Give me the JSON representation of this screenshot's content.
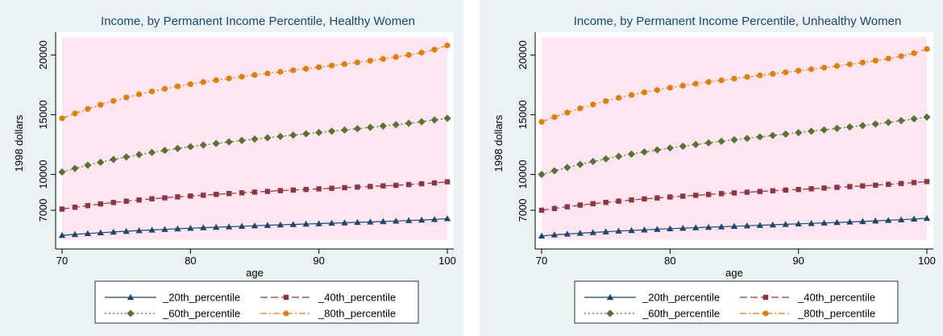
{
  "chart_data": [
    {
      "type": "line",
      "title": "Income, by Permanent Income Percentile, Healthy Women",
      "xlabel": "age",
      "ylabel": "1998 dollars",
      "xlim": [
        70,
        100
      ],
      "ylim": [
        4500,
        21500
      ],
      "x_ticks": [
        "70",
        "80",
        "90",
        "100"
      ],
      "y_ticks": [
        "7000",
        "10000",
        "15000",
        "20000"
      ],
      "x": [
        70,
        71,
        72,
        73,
        74,
        75,
        76,
        77,
        78,
        79,
        80,
        81,
        82,
        83,
        84,
        85,
        86,
        87,
        88,
        89,
        90,
        91,
        92,
        93,
        94,
        95,
        96,
        97,
        98,
        99,
        100
      ],
      "series": [
        {
          "name": "_20th_percentile",
          "color": "#1a476f",
          "marker": "triangle",
          "dash": "solid",
          "values": [
            4900,
            4980,
            5050,
            5120,
            5180,
            5240,
            5300,
            5350,
            5400,
            5450,
            5500,
            5540,
            5580,
            5620,
            5660,
            5700,
            5740,
            5780,
            5810,
            5850,
            5880,
            5920,
            5950,
            5990,
            6020,
            6060,
            6100,
            6140,
            6180,
            6230,
            6300
          ]
        },
        {
          "name": "_40th_percentile",
          "color": "#90353b",
          "marker": "square",
          "dash": "longdash",
          "values": [
            7100,
            7250,
            7390,
            7530,
            7650,
            7760,
            7860,
            7960,
            8040,
            8120,
            8190,
            8260,
            8330,
            8400,
            8460,
            8520,
            8580,
            8640,
            8690,
            8740,
            8790,
            8840,
            8890,
            8940,
            8990,
            9040,
            9090,
            9150,
            9220,
            9290,
            9380
          ]
        },
        {
          "name": "_60th_percentile",
          "color": "#55752f",
          "marker": "diamond",
          "dash": "dot",
          "values": [
            10200,
            10500,
            10770,
            11020,
            11250,
            11460,
            11660,
            11840,
            12010,
            12170,
            12320,
            12460,
            12590,
            12720,
            12840,
            12960,
            13070,
            13180,
            13290,
            13400,
            13510,
            13620,
            13720,
            13830,
            13940,
            14050,
            14160,
            14280,
            14410,
            14560,
            14700
          ]
        },
        {
          "name": "_80th_percentile",
          "color": "#e37e00",
          "marker": "circle",
          "dash": "dashdot",
          "values": [
            14700,
            15100,
            15480,
            15830,
            16150,
            16440,
            16710,
            16950,
            17170,
            17370,
            17560,
            17730,
            17890,
            18040,
            18180,
            18320,
            18460,
            18590,
            18720,
            18850,
            18980,
            19110,
            19240,
            19380,
            19520,
            19670,
            19830,
            20000,
            20200,
            20450,
            20800
          ]
        }
      ]
    },
    {
      "type": "line",
      "title": "Income, by Permanent Income Percentile, Unhealthy Women",
      "xlabel": "age",
      "ylabel": "1998 dollars",
      "xlim": [
        70,
        100
      ],
      "ylim": [
        4500,
        21500
      ],
      "x_ticks": [
        "70",
        "80",
        "90",
        "100"
      ],
      "y_ticks": [
        "7000",
        "10000",
        "15000",
        "20000"
      ],
      "x": [
        70,
        71,
        72,
        73,
        74,
        75,
        76,
        77,
        78,
        79,
        80,
        81,
        82,
        83,
        84,
        85,
        86,
        87,
        88,
        89,
        90,
        91,
        92,
        93,
        94,
        95,
        96,
        97,
        98,
        99,
        100
      ],
      "series": [
        {
          "name": "_20th_percentile",
          "color": "#1a476f",
          "marker": "triangle",
          "dash": "solid",
          "values": [
            4850,
            4940,
            5010,
            5080,
            5140,
            5200,
            5260,
            5310,
            5360,
            5410,
            5460,
            5500,
            5540,
            5580,
            5620,
            5660,
            5700,
            5740,
            5780,
            5820,
            5860,
            5900,
            5940,
            5980,
            6020,
            6060,
            6110,
            6160,
            6210,
            6270,
            6330
          ]
        },
        {
          "name": "_40th_percentile",
          "color": "#90353b",
          "marker": "square",
          "dash": "longdash",
          "values": [
            7000,
            7150,
            7290,
            7430,
            7550,
            7660,
            7760,
            7860,
            7950,
            8030,
            8110,
            8180,
            8250,
            8320,
            8390,
            8450,
            8510,
            8570,
            8630,
            8690,
            8740,
            8800,
            8860,
            8920,
            8980,
            9040,
            9100,
            9170,
            9240,
            9320,
            9400
          ]
        },
        {
          "name": "_60th_percentile",
          "color": "#55752f",
          "marker": "diamond",
          "dash": "dot",
          "values": [
            10000,
            10300,
            10580,
            10840,
            11080,
            11300,
            11510,
            11700,
            11880,
            12050,
            12210,
            12360,
            12500,
            12640,
            12770,
            12900,
            13020,
            13140,
            13260,
            13380,
            13500,
            13620,
            13730,
            13850,
            13970,
            14090,
            14220,
            14360,
            14500,
            14650,
            14800
          ]
        },
        {
          "name": "_80th_percentile",
          "color": "#e37e00",
          "marker": "circle",
          "dash": "dashdot",
          "values": [
            14400,
            14800,
            15180,
            15530,
            15850,
            16140,
            16410,
            16650,
            16870,
            17070,
            17260,
            17430,
            17590,
            17740,
            17880,
            18020,
            18160,
            18290,
            18420,
            18550,
            18680,
            18810,
            18940,
            19080,
            19220,
            19370,
            19530,
            19700,
            19900,
            20150,
            20500
          ]
        }
      ]
    }
  ]
}
